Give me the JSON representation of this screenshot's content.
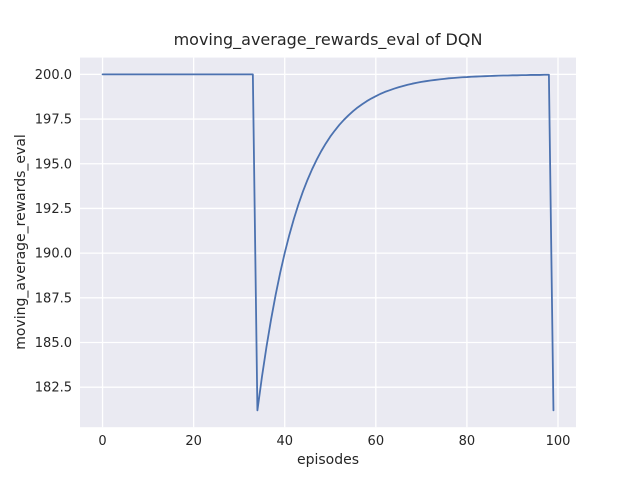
{
  "chart_data": {
    "type": "line",
    "title": "moving_average_rewards_eval of DQN",
    "xlabel": "episodes",
    "ylabel": "moving_average_rewards_eval",
    "grid": true,
    "legend": false,
    "xlim": [
      -4.95,
      103.95
    ],
    "ylim": [
      180.26,
      200.94
    ],
    "xticks": [
      0,
      20,
      40,
      60,
      80,
      100
    ],
    "xticklabels": [
      "0",
      "20",
      "40",
      "60",
      "80",
      "100"
    ],
    "yticks": [
      182.5,
      185.0,
      187.5,
      190.0,
      192.5,
      195.0,
      197.5,
      200.0
    ],
    "yticklabels": [
      "182.5",
      "185.0",
      "187.5",
      "190.0",
      "192.5",
      "195.0",
      "197.5",
      "200.0"
    ],
    "style": {
      "line_color": "#4C72B0",
      "plot_bg": "#EAEAF2",
      "grid_color": "#FFFFFF",
      "text_color": "#262626",
      "fig_bg": "#FFFFFF"
    },
    "series": [
      {
        "name": "DQN",
        "x": [
          0,
          1,
          2,
          3,
          4,
          5,
          6,
          7,
          8,
          9,
          10,
          11,
          12,
          13,
          14,
          15,
          16,
          17,
          18,
          19,
          20,
          21,
          22,
          23,
          24,
          25,
          26,
          27,
          28,
          29,
          30,
          31,
          32,
          33,
          34,
          35,
          36,
          37,
          38,
          39,
          40,
          41,
          42,
          43,
          44,
          45,
          46,
          47,
          48,
          49,
          50,
          51,
          52,
          53,
          54,
          55,
          56,
          57,
          58,
          59,
          60,
          61,
          62,
          63,
          64,
          65,
          66,
          67,
          68,
          69,
          70,
          71,
          72,
          73,
          74,
          75,
          76,
          77,
          78,
          79,
          80,
          81,
          82,
          83,
          84,
          85,
          86,
          87,
          88,
          89,
          90,
          91,
          92,
          93,
          94,
          95,
          96,
          97,
          98,
          99
        ],
        "y": [
          200.0,
          200.0,
          200.0,
          200.0,
          200.0,
          200.0,
          200.0,
          200.0,
          200.0,
          200.0,
          200.0,
          200.0,
          200.0,
          200.0,
          200.0,
          200.0,
          200.0,
          200.0,
          200.0,
          200.0,
          200.0,
          200.0,
          200.0,
          200.0,
          200.0,
          200.0,
          200.0,
          200.0,
          200.0,
          200.0,
          200.0,
          200.0,
          200.0,
          200.0,
          181.2,
          183.08,
          184.77,
          186.29,
          187.66,
          188.9,
          190.01,
          191.01,
          191.91,
          192.72,
          193.45,
          194.1,
          194.69,
          195.22,
          195.7,
          196.13,
          196.52,
          196.86,
          197.18,
          197.46,
          197.71,
          197.94,
          198.15,
          198.33,
          198.5,
          198.65,
          198.78,
          198.91,
          199.02,
          199.11,
          199.2,
          199.28,
          199.35,
          199.42,
          199.48,
          199.53,
          199.58,
          199.62,
          199.66,
          199.69,
          199.72,
          199.75,
          199.78,
          199.8,
          199.82,
          199.84,
          199.85,
          199.87,
          199.88,
          199.89,
          199.9,
          199.91,
          199.92,
          199.93,
          199.94,
          199.94,
          199.95,
          199.95,
          199.96,
          199.96,
          199.97,
          199.97,
          199.97,
          199.98,
          199.98,
          181.2
        ]
      }
    ]
  }
}
